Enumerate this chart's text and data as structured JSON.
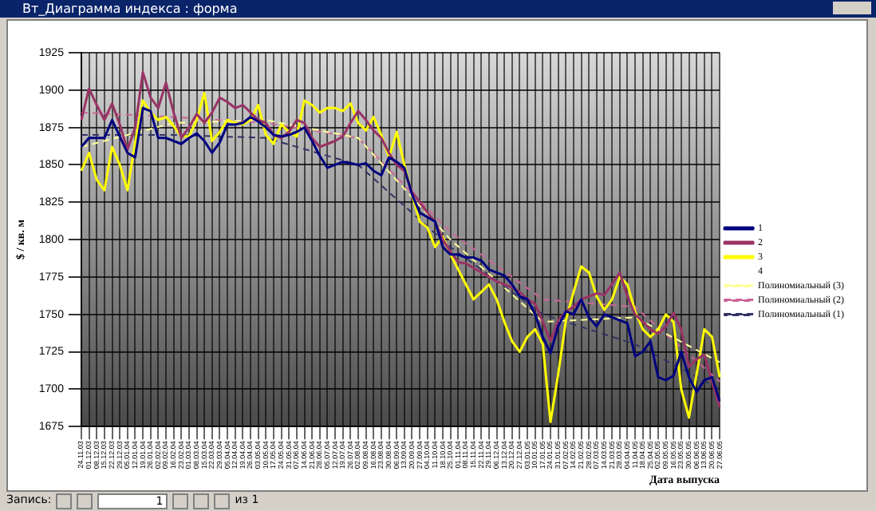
{
  "chart_data": {
    "type": "line",
    "title": "Вт_Диаграмма индекса : форма",
    "xlabel": "Дата выпуска",
    "ylabel": "$ / кв. м",
    "categories": [
      "24.11.03",
      "01.12.03",
      "08.12.03",
      "15.12.03",
      "22.12.03",
      "29.12.03",
      "05.01.04",
      "12.01.04",
      "19.01.04",
      "26.01.04",
      "02.02.04",
      "09.02.04",
      "16.02.04",
      "23.02.04",
      "01.03.04",
      "08.03.04",
      "15.03.04",
      "22.03.04",
      "29.03.04",
      "05.04.04",
      "12.04.04",
      "19.04.04",
      "26.04.04",
      "03.05.04",
      "10.05.04",
      "17.05.04",
      "24.05.04",
      "31.05.04",
      "07.06.04",
      "14.06.04",
      "21.06.04",
      "28.06.04",
      "05.07.04",
      "12.07.04",
      "19.07.04",
      "26.07.04",
      "02.08.04",
      "09.08.04",
      "16.08.04",
      "23.08.04",
      "30.08.04",
      "06.09.04",
      "13.09.04",
      "20.09.04",
      "27.09.04",
      "04.10.04",
      "11.10.04",
      "18.10.04",
      "25.10.04",
      "01.11.04",
      "08.11.04",
      "15.11.04",
      "22.11.04",
      "29.11.04",
      "06.12.04",
      "13.12.04",
      "20.12.04",
      "27.12.04",
      "03.01.05",
      "10.01.05",
      "17.01.05",
      "24.01.05",
      "31.01.05",
      "07.02.05",
      "14.02.05",
      "21.02.05",
      "28.02.05",
      "07.03.05",
      "14.03.05",
      "21.03.05",
      "28.03.05",
      "04.04.05",
      "11.04.05",
      "18.04.05",
      "25.04.05",
      "02.05.05",
      "09.05.05",
      "16.05.05",
      "23.05.05",
      "30.05.05",
      "06.06.05",
      "13.06.05",
      "20.06.05",
      "27.06.05"
    ],
    "series": [
      {
        "name": "1",
        "color": "#000080",
        "values": [
          1862,
          1868,
          1868,
          1868,
          1880,
          1869,
          1858,
          1855,
          1888,
          1886,
          1868,
          1868,
          1866,
          1864,
          1868,
          1871,
          1866,
          1858,
          1865,
          1877,
          1877,
          1878,
          1882,
          1879,
          1875,
          1870,
          1869,
          1870,
          1872,
          1875,
          1866,
          1856,
          1848,
          1850,
          1852,
          1851,
          1850,
          1851,
          1846,
          1843,
          1855,
          1852,
          1848,
          1830,
          1818,
          1815,
          1812,
          1795,
          1790,
          1790,
          1788,
          1788,
          1786,
          1780,
          1778,
          1776,
          1770,
          1762,
          1760,
          1750,
          1735,
          1724,
          1742,
          1752,
          1750,
          1760,
          1748,
          1742,
          1750,
          1748,
          1746,
          1744,
          1722,
          1725,
          1732,
          1708,
          1706,
          1709,
          1725,
          1708,
          1698,
          1706,
          1708,
          1692
        ]
      },
      {
        "name": "2",
        "color": "#993366",
        "values": [
          1880,
          1901,
          1890,
          1880,
          1891,
          1877,
          1860,
          1875,
          1912,
          1895,
          1888,
          1905,
          1885,
          1868,
          1875,
          1884,
          1878,
          1885,
          1895,
          1892,
          1888,
          1890,
          1885,
          1880,
          1878,
          1870,
          1868,
          1872,
          1880,
          1878,
          1868,
          1862,
          1864,
          1866,
          1869,
          1878,
          1886,
          1880,
          1873,
          1868,
          1858,
          1850,
          1846,
          1832,
          1825,
          1818,
          1812,
          1800,
          1792,
          1785,
          1784,
          1781,
          1778,
          1775,
          1772,
          1770,
          1768,
          1765,
          1760,
          1757,
          1745,
          1732,
          1746,
          1752,
          1755,
          1760,
          1762,
          1764,
          1763,
          1770,
          1778,
          1762,
          1750,
          1745,
          1740,
          1737,
          1742,
          1751,
          1740,
          1715,
          1720,
          1723,
          1705,
          1688
        ]
      },
      {
        "name": "3",
        "color": "#ffff00",
        "values": [
          1846,
          1858,
          1840,
          1833,
          1862,
          1850,
          1833,
          1865,
          1893,
          1885,
          1880,
          1882,
          1876,
          1869,
          1869,
          1880,
          1898,
          1866,
          1872,
          1880,
          1878,
          1877,
          1880,
          1890,
          1870,
          1864,
          1877,
          1872,
          1869,
          1893,
          1890,
          1885,
          1888,
          1888,
          1886,
          1891,
          1878,
          1873,
          1882,
          1870,
          1855,
          1872,
          1850,
          1830,
          1812,
          1808,
          1795,
          1802,
          1790,
          1780,
          1770,
          1760,
          1765,
          1770,
          1760,
          1745,
          1732,
          1725,
          1735,
          1740,
          1730,
          1678,
          1710,
          1746,
          1765,
          1782,
          1778,
          1762,
          1753,
          1760,
          1775,
          1770,
          1752,
          1740,
          1735,
          1740,
          1750,
          1745,
          1700,
          1681,
          1710,
          1740,
          1735,
          1708
        ]
      },
      {
        "name": "4",
        "values": [
          null,
          null,
          null,
          null,
          null,
          null,
          null,
          null,
          null,
          null,
          null,
          null,
          null,
          null,
          null,
          null,
          null,
          null,
          null,
          null,
          null,
          null,
          null,
          null,
          null,
          null,
          null,
          null,
          null,
          null,
          null,
          null,
          null,
          null,
          null,
          null,
          null,
          null,
          null,
          null,
          null,
          null,
          null,
          null,
          null,
          null,
          null,
          null,
          null,
          null,
          null,
          null,
          null,
          null,
          null,
          null,
          null,
          null,
          null,
          null,
          null,
          null,
          null,
          null,
          null,
          null,
          null,
          null,
          null,
          null,
          null,
          null,
          null,
          null,
          null,
          null,
          null,
          null,
          null,
          null,
          null,
          null,
          null,
          null
        ]
      },
      {
        "name": "Полиномиальный (3)",
        "color": "#ffff99",
        "line_style": "dashed",
        "values": [
          1862,
          null,
          null,
          null,
          null,
          null,
          null,
          null,
          null,
          null,
          null,
          null,
          1878,
          null,
          null,
          null,
          null,
          null,
          null,
          null,
          null,
          null,
          null,
          null,
          1880,
          null,
          null,
          null,
          null,
          null,
          null,
          null,
          null,
          null,
          null,
          null,
          1868,
          null,
          null,
          null,
          null,
          null,
          null,
          null,
          null,
          null,
          null,
          null,
          1800,
          null,
          null,
          null,
          null,
          null,
          null,
          null,
          null,
          null,
          null,
          null,
          1745,
          null,
          null,
          null,
          null,
          null,
          null,
          null,
          null,
          null,
          null,
          null,
          1748,
          null,
          null,
          null,
          null,
          null,
          null,
          null,
          null,
          null,
          null,
          1718
        ]
      },
      {
        "name": "Полиномиальный (2)",
        "color": "#cc6699",
        "line_style": "dashed",
        "values": [
          1885,
          null,
          null,
          null,
          null,
          null,
          null,
          null,
          null,
          null,
          null,
          null,
          1882,
          null,
          null,
          null,
          null,
          null,
          null,
          null,
          null,
          null,
          null,
          null,
          1878,
          null,
          null,
          null,
          null,
          null,
          null,
          null,
          null,
          null,
          null,
          null,
          1868,
          null,
          null,
          null,
          null,
          null,
          null,
          null,
          null,
          null,
          null,
          null,
          1805,
          null,
          null,
          null,
          null,
          null,
          null,
          null,
          null,
          null,
          null,
          null,
          1760,
          null,
          null,
          null,
          null,
          null,
          null,
          null,
          null,
          null,
          null,
          null,
          1755,
          null,
          null,
          null,
          null,
          null,
          null,
          null,
          null,
          null,
          null,
          1705
        ]
      },
      {
        "name": "Полиномиальный (1)",
        "color": "#333366",
        "line_style": "dashed",
        "values": [
          1870,
          null,
          null,
          null,
          null,
          null,
          null,
          null,
          null,
          null,
          null,
          null,
          1870,
          null,
          null,
          null,
          null,
          null,
          null,
          null,
          null,
          null,
          null,
          null,
          1868,
          null,
          null,
          null,
          null,
          null,
          null,
          null,
          null,
          null,
          null,
          null,
          1850,
          null,
          null,
          null,
          null,
          null,
          null,
          null,
          null,
          null,
          null,
          null,
          1795,
          null,
          null,
          null,
          null,
          null,
          null,
          null,
          null,
          null,
          null,
          null,
          1750,
          null,
          null,
          null,
          null,
          null,
          null,
          null,
          null,
          null,
          null,
          null,
          1730,
          null,
          null,
          null,
          null,
          null,
          null,
          null,
          null,
          null,
          null,
          1700
        ]
      }
    ],
    "ylim": [
      1675,
      1925
    ],
    "yticks": [
      1675,
      1700,
      1725,
      1750,
      1775,
      1800,
      1825,
      1850,
      1875,
      1900,
      1925
    ],
    "grid": true,
    "legend": "right",
    "annotations": [
      "Запись:",
      "1",
      "из 1"
    ]
  }
}
